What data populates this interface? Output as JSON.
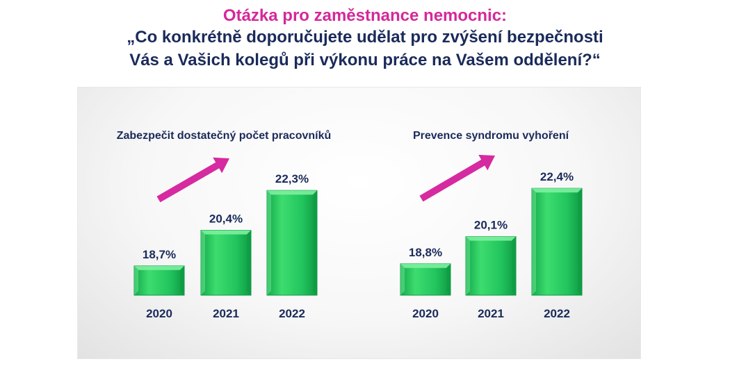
{
  "header": {
    "subtitle": "Otázka pro zaměstnance nemocnic:",
    "question_line1": "„Co konkrétně doporučujete udělat pro zvýšení bezpečnosti",
    "question_line2": "Vás a Vašich kolegů při výkonu práce na Vašem oddělení?“"
  },
  "colors": {
    "subtitle": "#d5289a",
    "text": "#1a2a5a",
    "bar": "#22c55e",
    "bar_light": "#7ef0a0",
    "bar_dark": "#0e9a44",
    "arrow": "#d62aa0"
  },
  "chart_data": [
    {
      "type": "bar",
      "title": "Zabezpečit dostatečný počet pracovníků",
      "categories": [
        "2020",
        "2021",
        "2022"
      ],
      "values": [
        18.7,
        20.4,
        22.3
      ],
      "value_labels": [
        "18,7%",
        "20,4%",
        "22,3%"
      ],
      "trend_arrow": "up",
      "ylim": [
        17.3,
        23.5
      ]
    },
    {
      "type": "bar",
      "title": "Prevence syndromu vyhoření",
      "categories": [
        "2020",
        "2021",
        "2022"
      ],
      "values": [
        18.8,
        20.1,
        22.4
      ],
      "value_labels": [
        "18,8%",
        "20,1%",
        "22,4%"
      ],
      "trend_arrow": "up",
      "ylim": [
        17.3,
        23.5
      ]
    }
  ]
}
